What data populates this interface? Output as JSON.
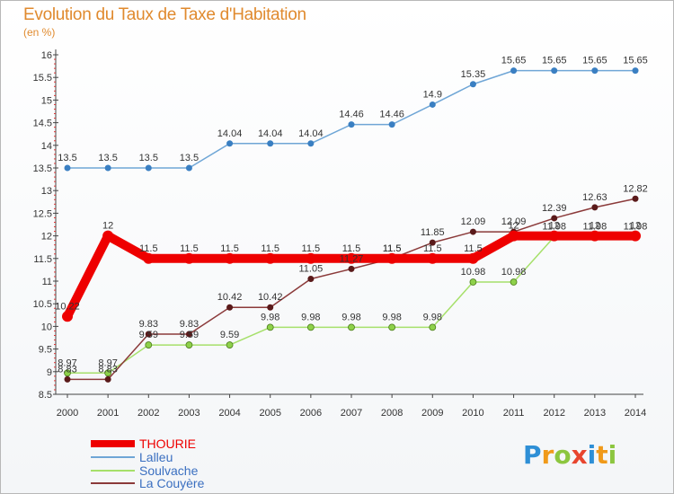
{
  "header": {
    "title": "Evolution du Taux de Taxe d'Habitation",
    "unit": "(en %)"
  },
  "logo": {
    "letters": [
      "P",
      "r",
      "o",
      "x",
      "i",
      "t",
      "i"
    ],
    "colors": [
      "#2e8fd6",
      "#f09a1a",
      "#8cc63f",
      "#e8452e",
      "#2e8fd6",
      "#f09a1a",
      "#8cc63f"
    ]
  },
  "chart_data": {
    "type": "line",
    "title": "Evolution du Taux de Taxe d'Habitation",
    "ylabel": "(en %)",
    "x": [
      "2000",
      "2001",
      "2002",
      "2003",
      "2004",
      "2005",
      "2006",
      "2007",
      "2008",
      "2009",
      "2010",
      "2011",
      "2012",
      "2013",
      "2014"
    ],
    "ylim": [
      8.5,
      16
    ],
    "yticks": [
      "8.5",
      "9",
      "9.5",
      "10",
      "10.5",
      "11",
      "11.5",
      "12",
      "12.5",
      "13",
      "13.5",
      "14",
      "14.5",
      "15",
      "15.5",
      "16"
    ],
    "grid": false,
    "legend": "bottom-left",
    "series": [
      {
        "name": "THOURIE",
        "color": "#ee0000",
        "values": [
          10.22,
          12,
          11.5,
          11.5,
          11.5,
          11.5,
          11.5,
          11.5,
          11.5,
          11.5,
          11.5,
          12,
          12,
          12,
          12
        ],
        "labels": [
          "10.22",
          "12",
          "11.5",
          "11.5",
          "11.5",
          "11.5",
          "11.5",
          "11.5",
          "11.5",
          "11.5",
          "11.5",
          "12",
          "12",
          "12",
          "12"
        ]
      },
      {
        "name": "Lalleu",
        "color": "#6fa6d6",
        "values": [
          13.5,
          13.5,
          13.5,
          13.5,
          14.04,
          14.04,
          14.04,
          14.46,
          14.46,
          14.9,
          15.35,
          15.65,
          15.65,
          15.65,
          15.65
        ],
        "labels": [
          "13.5",
          "13.5",
          "13.5",
          "13.5",
          "14.04",
          "14.04",
          "14.04",
          "14.46",
          "14.46",
          "14.9",
          "15.35",
          "15.65",
          "15.65",
          "15.65",
          "15.65"
        ]
      },
      {
        "name": "Soulvache",
        "color": "#a6e06a",
        "values": [
          8.97,
          8.97,
          9.59,
          9.59,
          9.59,
          9.98,
          9.98,
          9.98,
          9.98,
          9.98,
          10.98,
          10.98,
          11.98,
          11.98,
          11.98
        ],
        "labels": [
          "8.97",
          "8.97",
          "9.59",
          "9.59",
          "9.59",
          "9.98",
          "9.98",
          "9.98",
          "9.98",
          "9.98",
          "10.98",
          "10.98",
          "11.98",
          "11.98",
          "11.98"
        ]
      },
      {
        "name": "La Couyère",
        "color": "#8b3a3a",
        "values": [
          8.83,
          8.83,
          9.83,
          9.83,
          10.42,
          10.42,
          11.05,
          11.27,
          11.5,
          11.85,
          12.09,
          12.09,
          12.39,
          12.63,
          12.82
        ],
        "labels": [
          "8.83",
          "8.83",
          "9.83",
          "9.83",
          "10.42",
          "10.42",
          "11.05",
          "11.27",
          "11.5",
          "11.85",
          "12.09",
          "12.09",
          "12.39",
          "12.63",
          "12.82"
        ]
      }
    ]
  }
}
